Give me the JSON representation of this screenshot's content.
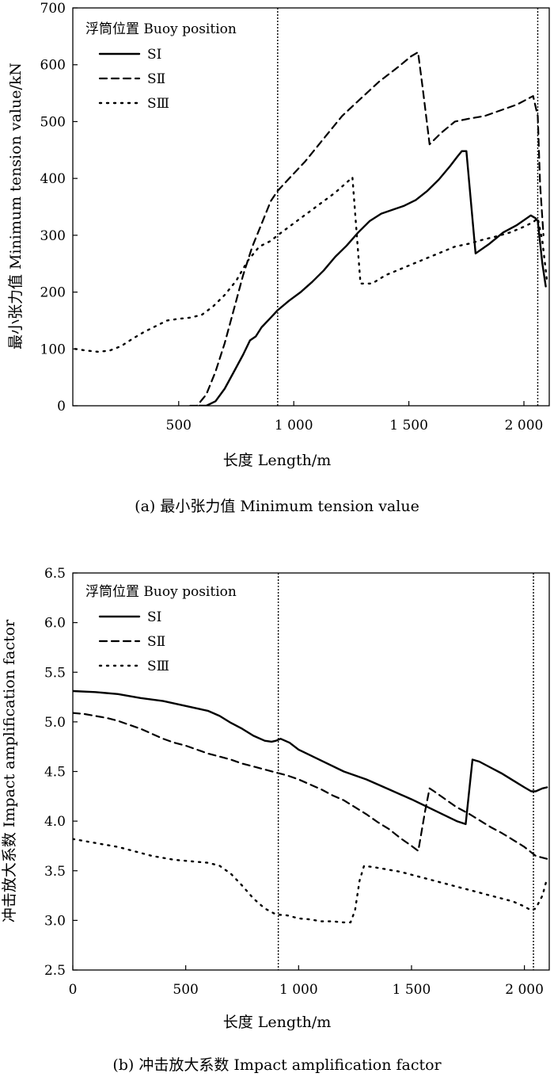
{
  "chart_data": [
    {
      "type": "line",
      "caption": "(a) 最小张力值 Minimum tension value",
      "xlabel": "长度 Length/m",
      "ylabel": "最小张力值 Minimum tension value/kN",
      "xlim": [
        40,
        2110
      ],
      "ylim": [
        0,
        700
      ],
      "x_ticks": [
        500,
        1000,
        1500,
        2000
      ],
      "x_tick_labels": [
        "500",
        "1 000",
        "1 500",
        "2 000"
      ],
      "y_ticks": [
        0,
        100,
        200,
        300,
        400,
        500,
        600,
        700
      ],
      "y_tick_labels": [
        "0",
        "100",
        "200",
        "300",
        "400",
        "500",
        "600",
        "700"
      ],
      "reference_lines_x": [
        930,
        2060
      ],
      "legend_title": "浮筒位置 Buoy position",
      "series": [
        {
          "name": "SⅠ",
          "style": "solid",
          "x": [
            590,
            620,
            660,
            700,
            740,
            780,
            810,
            835,
            860,
            900,
            930,
            980,
            1030,
            1080,
            1130,
            1180,
            1230,
            1280,
            1330,
            1380,
            1430,
            1480,
            1530,
            1580,
            1630,
            1680,
            1710,
            1730,
            1750,
            1790,
            1850,
            1910,
            1970,
            2030,
            2050,
            2060,
            2080,
            2095
          ],
          "y": [
            0,
            0,
            8,
            30,
            60,
            90,
            115,
            122,
            138,
            155,
            168,
            185,
            200,
            218,
            238,
            262,
            282,
            305,
            325,
            338,
            345,
            352,
            362,
            378,
            398,
            422,
            438,
            448,
            448,
            268,
            285,
            305,
            318,
            335,
            330,
            325,
            250,
            210
          ]
        },
        {
          "name": "SⅡ",
          "style": "dashed",
          "x": [
            550,
            580,
            620,
            660,
            700,
            740,
            780,
            820,
            860,
            900,
            930,
            980,
            1050,
            1130,
            1210,
            1290,
            1370,
            1450,
            1510,
            1540,
            1560,
            1590,
            1640,
            1700,
            1760,
            1830,
            1900,
            1970,
            2040,
            2060,
            2070,
            2085
          ],
          "y": [
            0,
            0,
            20,
            60,
            110,
            170,
            230,
            280,
            320,
            360,
            378,
            400,
            430,
            470,
            510,
            540,
            570,
            595,
            615,
            622,
            560,
            460,
            480,
            500,
            505,
            510,
            520,
            530,
            545,
            510,
            390,
            300
          ]
        },
        {
          "name": "SⅢ",
          "style": "dotted",
          "x": [
            50,
            100,
            150,
            200,
            250,
            300,
            350,
            400,
            450,
            500,
            550,
            600,
            650,
            700,
            750,
            800,
            850,
            900,
            930,
            980,
            1030,
            1080,
            1130,
            1180,
            1230,
            1255,
            1290,
            1340,
            1400,
            1460,
            1520,
            1580,
            1640,
            1700,
            1760,
            1820,
            1880,
            1940,
            2000,
            2040,
            2060,
            2080,
            2100
          ],
          "y": [
            100,
            97,
            95,
            97,
            105,
            118,
            130,
            140,
            150,
            153,
            155,
            160,
            175,
            195,
            220,
            255,
            280,
            290,
            300,
            315,
            330,
            345,
            360,
            375,
            393,
            402,
            215,
            215,
            230,
            240,
            250,
            260,
            270,
            280,
            285,
            292,
            298,
            305,
            315,
            323,
            330,
            290,
            220
          ]
        }
      ]
    },
    {
      "type": "line",
      "caption": "(b) 冲击放大系数 Impact amplification factor",
      "xlabel": "长度 Length/m",
      "ylabel": "冲击放大系数 Impact amplification factor",
      "xlim": [
        0,
        2110
      ],
      "ylim": [
        2.5,
        6.5
      ],
      "x_ticks": [
        0,
        500,
        1000,
        1500,
        2000
      ],
      "x_tick_labels": [
        "0",
        "500",
        "1 000",
        "1 500",
        "2 000"
      ],
      "y_ticks": [
        2.5,
        3.0,
        3.5,
        4.0,
        4.5,
        5.0,
        5.5,
        6.0,
        6.5
      ],
      "y_tick_labels": [
        "2.5",
        "3.0",
        "3.5",
        "4.0",
        "4.5",
        "5.0",
        "5.5",
        "6.0",
        "6.5"
      ],
      "reference_lines_x": [
        910,
        2040
      ],
      "legend_title": "浮筒位置 Buoy position",
      "series": [
        {
          "name": "SⅠ",
          "style": "solid",
          "x": [
            0,
            100,
            200,
            300,
            400,
            500,
            600,
            650,
            700,
            750,
            800,
            850,
            880,
            900,
            920,
            960,
            1000,
            1100,
            1200,
            1300,
            1400,
            1500,
            1600,
            1700,
            1740,
            1770,
            1800,
            1850,
            1900,
            1950,
            2000,
            2030,
            2050,
            2080,
            2100
          ],
          "y": [
            5.31,
            5.3,
            5.28,
            5.24,
            5.21,
            5.16,
            5.11,
            5.06,
            4.99,
            4.93,
            4.86,
            4.81,
            4.8,
            4.81,
            4.83,
            4.79,
            4.72,
            4.61,
            4.5,
            4.42,
            4.32,
            4.22,
            4.11,
            4.0,
            3.97,
            4.62,
            4.6,
            4.54,
            4.48,
            4.41,
            4.34,
            4.3,
            4.3,
            4.33,
            4.34
          ]
        },
        {
          "name": "SⅡ",
          "style": "dashed",
          "x": [
            0,
            50,
            100,
            150,
            200,
            250,
            300,
            350,
            400,
            450,
            500,
            550,
            600,
            650,
            700,
            750,
            800,
            850,
            900,
            950,
            1000,
            1050,
            1100,
            1150,
            1200,
            1250,
            1300,
            1350,
            1400,
            1450,
            1500,
            1530,
            1560,
            1580,
            1600,
            1650,
            1700,
            1750,
            1800,
            1850,
            1900,
            1950,
            2000,
            2050,
            2100
          ],
          "y": [
            5.09,
            5.08,
            5.06,
            5.04,
            5.01,
            4.97,
            4.93,
            4.88,
            4.83,
            4.79,
            4.76,
            4.72,
            4.68,
            4.65,
            4.62,
            4.58,
            4.55,
            4.52,
            4.49,
            4.46,
            4.42,
            4.37,
            4.32,
            4.26,
            4.21,
            4.14,
            4.07,
            3.99,
            3.92,
            3.83,
            3.75,
            3.7,
            4.1,
            4.33,
            4.3,
            4.22,
            4.14,
            4.08,
            4.01,
            3.94,
            3.88,
            3.81,
            3.74,
            3.65,
            3.62
          ]
        },
        {
          "name": "SⅢ",
          "style": "dotted",
          "x": [
            0,
            50,
            100,
            150,
            200,
            250,
            300,
            350,
            400,
            450,
            500,
            550,
            600,
            650,
            700,
            750,
            800,
            850,
            900,
            950,
            1000,
            1050,
            1100,
            1150,
            1200,
            1230,
            1250,
            1270,
            1290,
            1350,
            1400,
            1450,
            1500,
            1550,
            1600,
            1650,
            1700,
            1750,
            1800,
            1850,
            1900,
            1950,
            2000,
            2030,
            2050,
            2080,
            2100
          ],
          "y": [
            3.82,
            3.8,
            3.78,
            3.76,
            3.74,
            3.71,
            3.68,
            3.65,
            3.63,
            3.61,
            3.6,
            3.59,
            3.58,
            3.55,
            3.47,
            3.35,
            3.22,
            3.12,
            3.06,
            3.05,
            3.02,
            3.01,
            2.99,
            2.99,
            2.98,
            2.98,
            3.1,
            3.4,
            3.55,
            3.53,
            3.51,
            3.49,
            3.46,
            3.43,
            3.4,
            3.37,
            3.34,
            3.31,
            3.28,
            3.25,
            3.22,
            3.19,
            3.14,
            3.1,
            3.12,
            3.25,
            3.42
          ]
        }
      ]
    }
  ]
}
